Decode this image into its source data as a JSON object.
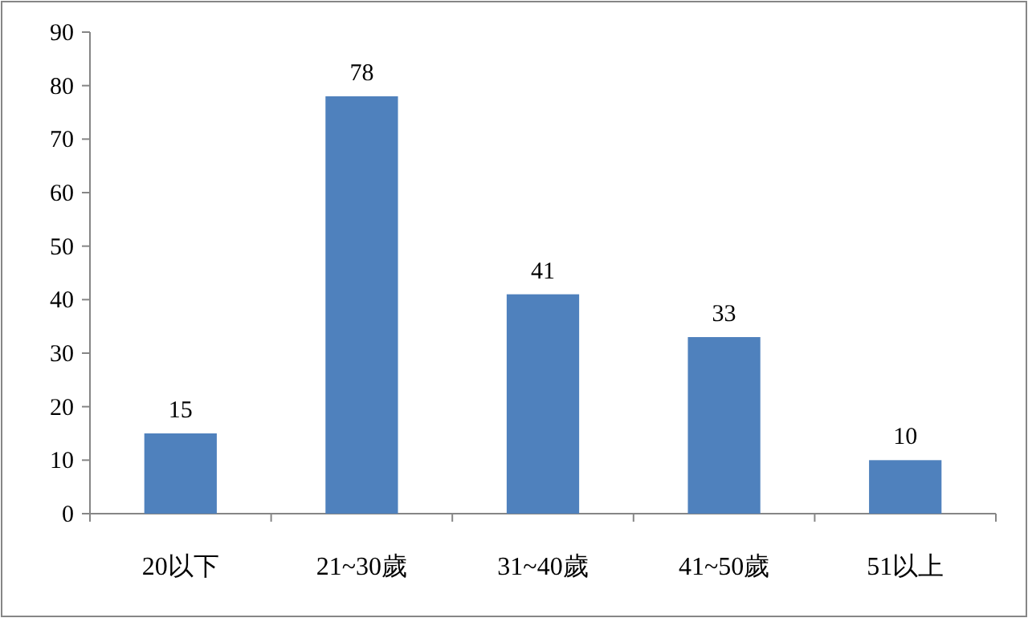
{
  "chart_data": {
    "type": "bar",
    "categories": [
      "20以下",
      "21~30歲",
      "31~40歲",
      "41~50歲",
      "51以上"
    ],
    "values": [
      15,
      78,
      41,
      33,
      10
    ],
    "color": "#4f81bd",
    "ylim": [
      0,
      90
    ],
    "yticks": [
      0,
      10,
      20,
      30,
      40,
      50,
      60,
      70,
      80,
      90
    ],
    "data_labels": true
  }
}
